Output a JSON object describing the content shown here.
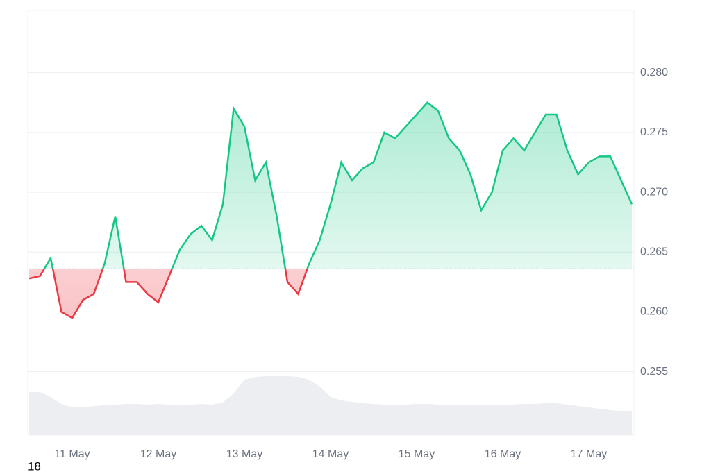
{
  "chart_data": {
    "type": "baseline-line",
    "corner_label": "18",
    "categories": [
      null,
      null,
      null,
      null,
      "11 May",
      null,
      null,
      null,
      null,
      null,
      null,
      null,
      "12 May",
      null,
      null,
      null,
      null,
      null,
      null,
      null,
      "13 May",
      null,
      null,
      null,
      null,
      null,
      null,
      null,
      "14 May",
      null,
      null,
      null,
      null,
      null,
      null,
      null,
      "15 May",
      null,
      null,
      null,
      null,
      null,
      null,
      null,
      "16 May",
      null,
      null,
      null,
      null,
      null,
      null,
      null,
      "17 May",
      null,
      null,
      null,
      null
    ],
    "baseline": 0.2636,
    "series": [
      {
        "name": "price",
        "color": "#16c784",
        "color_below": "#ea3943",
        "values": [
          0.2628,
          0.263,
          0.2645,
          0.26,
          0.2595,
          0.261,
          0.2615,
          0.264,
          0.268,
          0.2625,
          0.2625,
          0.2615,
          0.2608,
          0.263,
          0.2652,
          0.2665,
          0.2672,
          0.266,
          0.269,
          0.277,
          0.2755,
          0.271,
          0.2725,
          0.268,
          0.2625,
          0.2615,
          0.264,
          0.266,
          0.269,
          0.2725,
          0.271,
          0.272,
          0.2725,
          0.275,
          0.2745,
          0.2755,
          0.2765,
          0.2775,
          0.2768,
          0.2745,
          0.2735,
          0.2715,
          0.2685,
          0.27,
          0.2735,
          0.2745,
          0.2735,
          0.275,
          0.2765,
          0.2765,
          0.2735,
          0.2715,
          0.2725,
          0.273,
          0.273,
          0.271,
          0.269
        ]
      },
      {
        "name": "volume",
        "color": "#eceef2",
        "axis": "volume",
        "values": [
          62,
          62,
          55,
          45,
          40,
          40,
          42,
          43,
          44,
          45,
          45,
          44,
          45,
          44,
          43,
          44,
          45,
          44,
          47,
          60,
          80,
          84,
          85,
          85,
          85,
          84,
          80,
          70,
          55,
          50,
          48,
          46,
          45,
          44,
          44,
          44,
          45,
          45,
          44,
          44,
          44,
          43,
          43,
          44,
          44,
          44,
          45,
          45,
          46,
          46,
          44,
          42,
          40,
          38,
          36,
          35,
          35
        ]
      }
    ],
    "ylim": [
      0.2497,
      0.2852
    ],
    "yticks": [
      0.255,
      {
        "value": 0.26,
        "label": "0.260"
      },
      0.265,
      {
        "value": 0.27,
        "label": "0.270"
      },
      0.275,
      {
        "value": 0.28,
        "label": "0.280"
      }
    ],
    "volume_lim": [
      0,
      100
    ],
    "grid": true
  }
}
